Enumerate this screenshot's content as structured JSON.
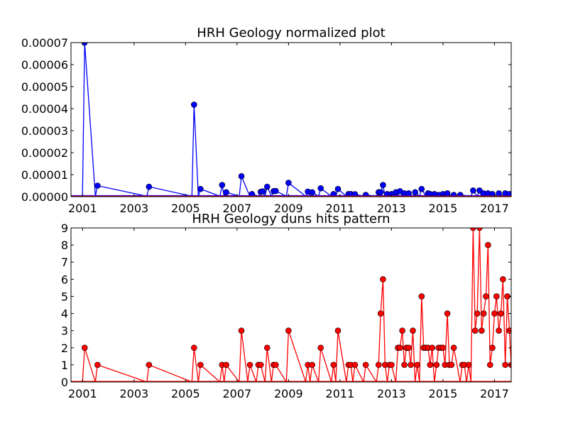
{
  "chart_data": [
    {
      "type": "line",
      "title": "HRH Geology normalized plot",
      "xlabel": "",
      "ylabel": "",
      "x_range": [
        2000.55,
        2017.65
      ],
      "xlim": [
        2000.55,
        2017.65
      ],
      "ylim": [
        0,
        7e-05
      ],
      "x_ticks": [
        2001,
        2003,
        2005,
        2007,
        2009,
        2011,
        2013,
        2015,
        2017
      ],
      "x_tick_labels": [
        "2001",
        "2003",
        "2005",
        "2007",
        "2009",
        "2011",
        "2013",
        "2015",
        "2017"
      ],
      "y_ticks": [
        0,
        1e-05,
        2e-05,
        3e-05,
        4e-05,
        5e-05,
        6e-05,
        7e-05
      ],
      "y_tick_labels": [
        "0.00000",
        "0.00001",
        "0.00002",
        "0.00003",
        "0.00004",
        "0.00005",
        "0.00006",
        "0.00007"
      ],
      "grid": false,
      "legend": "none",
      "series": [
        {
          "name": "",
          "color": "#0000ff",
          "marker_color": "#0000ff",
          "line_color": "#0000ff",
          "x": [
            2001.08,
            2001.58,
            2003.58,
            2005.33,
            2005.58,
            2006.42,
            2006.58,
            2007.17,
            2007.58,
            2007.92,
            2008.0,
            2008.17,
            2008.42,
            2008.5,
            2009.0,
            2009.75,
            2009.92,
            2010.25,
            2010.75,
            2010.92,
            2011.33,
            2011.42,
            2011.58,
            2012.0,
            2012.5,
            2012.58,
            2012.67,
            2012.83,
            2013.0,
            2013.17,
            2013.33,
            2013.5,
            2013.67,
            2013.92,
            2014.17,
            2014.42,
            2014.5,
            2014.67,
            2014.83,
            2015.0,
            2015.17,
            2015.42,
            2015.67,
            2016.17,
            2016.42,
            2016.58,
            2016.75,
            2016.92,
            2017.17,
            2017.42,
            2017.58
          ],
          "y": [
            7e-05,
            5e-06,
            4.5e-06,
            4.18e-05,
            3.5e-06,
            5.3e-06,
            2e-06,
            9.3e-06,
            1.2e-06,
            2.2e-06,
            2.4e-06,
            4.5e-06,
            2.5e-06,
            2.6e-06,
            6.3e-06,
            2.3e-06,
            2e-06,
            3.8e-06,
            1.2e-06,
            3.5e-06,
            1.2e-06,
            1.2e-06,
            1.1e-06,
            8e-07,
            2e-06,
            2e-06,
            5.3e-06,
            1.2e-06,
            1.2e-06,
            2e-06,
            2.5e-06,
            1.5e-06,
            1.5e-06,
            2e-06,
            3.5e-06,
            1.5e-06,
            1.2e-06,
            1.2e-06,
            8e-07,
            1.2e-06,
            1.5e-06,
            8e-07,
            8e-07,
            2.8e-06,
            2.8e-06,
            1.5e-06,
            1.5e-06,
            1.2e-06,
            1.5e-06,
            1.5e-06,
            1.2e-06
          ]
        },
        {
          "name": "",
          "color": "#ff0000",
          "line_color": "#ff0000",
          "x": [
            2000.55,
            2017.65
          ],
          "y": [
            2e-07,
            2e-07
          ]
        }
      ]
    },
    {
      "type": "line",
      "title": "HRH Geology duns hits pattern",
      "xlabel": "",
      "ylabel": "",
      "x_range": [
        2000.55,
        2017.65
      ],
      "xlim": [
        2000.55,
        2017.65
      ],
      "ylim": [
        0,
        9
      ],
      "x_ticks": [
        2001,
        2003,
        2005,
        2007,
        2009,
        2011,
        2013,
        2015,
        2017
      ],
      "x_tick_labels": [
        "2001",
        "2003",
        "2005",
        "2007",
        "2009",
        "2011",
        "2013",
        "2015",
        "2017"
      ],
      "y_ticks": [
        0,
        1,
        2,
        3,
        4,
        5,
        6,
        7,
        8,
        9
      ],
      "y_tick_labels": [
        "0",
        "1",
        "2",
        "3",
        "4",
        "5",
        "6",
        "7",
        "8",
        "9"
      ],
      "grid": false,
      "legend": "none",
      "series": [
        {
          "name": "",
          "color": "#ff0000",
          "marker_color": "#ff0000",
          "line_color": "#ff0000",
          "x": [
            2001.08,
            2001.58,
            2003.58,
            2005.33,
            2005.58,
            2006.42,
            2006.58,
            2007.17,
            2007.5,
            2007.83,
            2007.92,
            2008.17,
            2008.42,
            2008.5,
            2009.0,
            2009.75,
            2009.92,
            2010.25,
            2010.75,
            2010.92,
            2011.33,
            2011.42,
            2011.58,
            2012.0,
            2012.5,
            2012.58,
            2012.67,
            2012.75,
            2012.92,
            2013.0,
            2013.25,
            2013.33,
            2013.42,
            2013.5,
            2013.58,
            2013.67,
            2013.75,
            2013.83,
            2014.0,
            2014.17,
            2014.25,
            2014.33,
            2014.42,
            2014.5,
            2014.58,
            2014.75,
            2014.83,
            2014.92,
            2015.0,
            2015.08,
            2015.17,
            2015.25,
            2015.33,
            2015.42,
            2015.75,
            2015.83,
            2016.0,
            2016.17,
            2016.25,
            2016.33,
            2016.42,
            2016.5,
            2016.58,
            2016.67,
            2016.75,
            2016.83,
            2016.92,
            2017.0,
            2017.08,
            2017.17,
            2017.25,
            2017.33,
            2017.42,
            2017.5,
            2017.58,
            2017.65
          ],
          "y": [
            2,
            1,
            1,
            2,
            1,
            1,
            1,
            3,
            1,
            1,
            1,
            2,
            1,
            1,
            3,
            1,
            1,
            2,
            1,
            3,
            1,
            1,
            1,
            1,
            1,
            4,
            6,
            1,
            1,
            1,
            2,
            2,
            3,
            1,
            2,
            2,
            1,
            3,
            1,
            5,
            2,
            2,
            2,
            1,
            2,
            1,
            2,
            2,
            2,
            1,
            4,
            1,
            1,
            2,
            1,
            1,
            1,
            9,
            3,
            4,
            9,
            3,
            4,
            5,
            8,
            1,
            2,
            4,
            5,
            3,
            4,
            6,
            1,
            5,
            3,
            1
          ]
        }
      ]
    }
  ]
}
